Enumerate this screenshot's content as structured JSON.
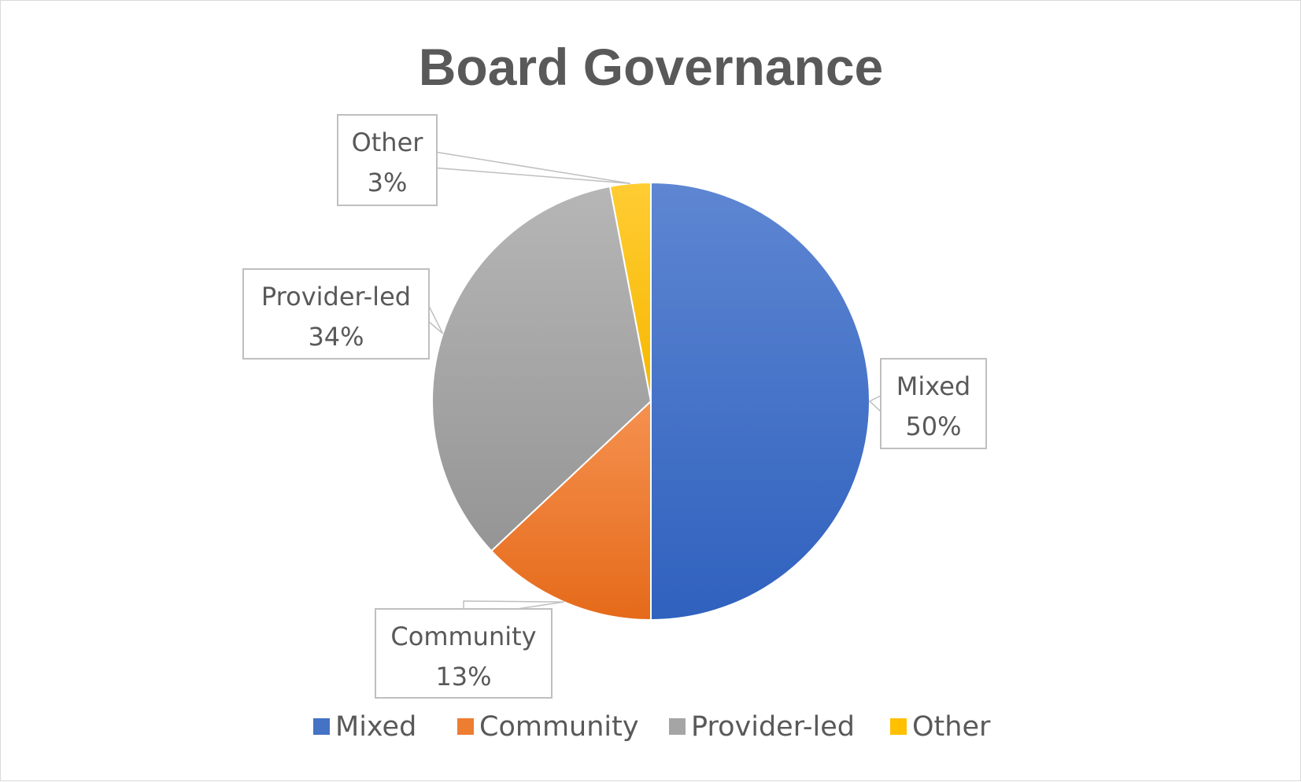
{
  "chart_data": {
    "type": "pie",
    "title": "Board Governance",
    "categories": [
      "Mixed",
      "Community",
      "Provider-led",
      "Other"
    ],
    "values": [
      50,
      13,
      34,
      3
    ],
    "data_labels": [
      {
        "category": "Mixed",
        "percent": "50%"
      },
      {
        "category": "Community",
        "percent": "13%"
      },
      {
        "category": "Provider-led",
        "percent": "34%"
      },
      {
        "category": "Other",
        "percent": "3%"
      }
    ],
    "colors": [
      "#4472c4",
      "#ed7d31",
      "#a5a5a5",
      "#ffc000"
    ],
    "legend": {
      "placement": "bottom",
      "items": [
        "Mixed",
        "Community",
        "Provider-led",
        "Other"
      ]
    }
  }
}
